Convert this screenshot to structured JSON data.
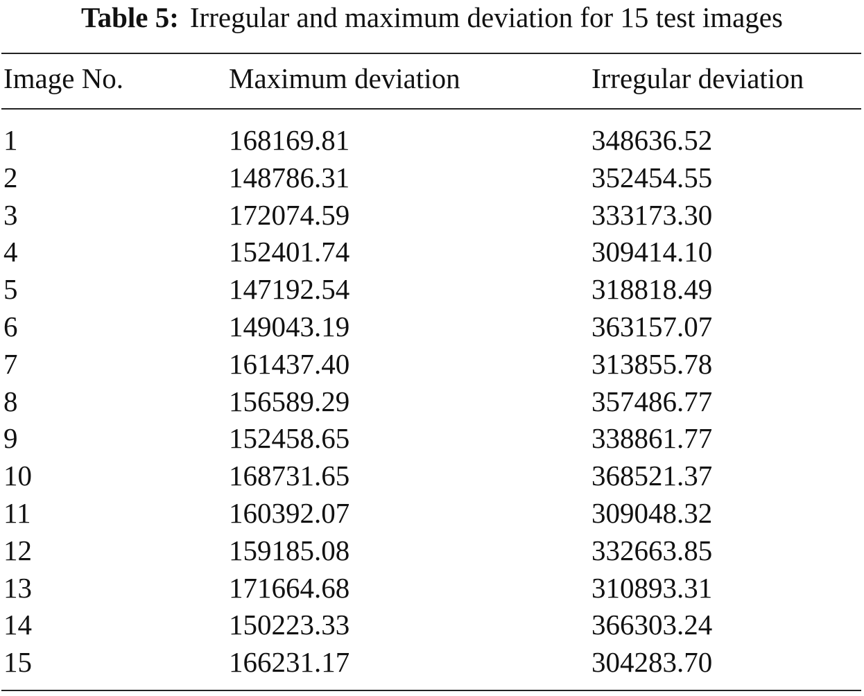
{
  "caption": {
    "label": "Table 5:",
    "text": "Irregular and maximum deviation for 15 test images"
  },
  "table": {
    "headers": [
      "Image No.",
      "Maximum deviation",
      "Irregular deviation"
    ],
    "rows": [
      [
        "1",
        "168169.81",
        "348636.52"
      ],
      [
        "2",
        "148786.31",
        "352454.55"
      ],
      [
        "3",
        "172074.59",
        "333173.30"
      ],
      [
        "4",
        "152401.74",
        "309414.10"
      ],
      [
        "5",
        "147192.54",
        "318818.49"
      ],
      [
        "6",
        "149043.19",
        "363157.07"
      ],
      [
        "7",
        "161437.40",
        "313855.78"
      ],
      [
        "8",
        "156589.29",
        "357486.77"
      ],
      [
        "9",
        "152458.65",
        "338861.77"
      ],
      [
        "10",
        "168731.65",
        "368521.37"
      ],
      [
        "11",
        "160392.07",
        "309048.32"
      ],
      [
        "12",
        "159185.08",
        "332663.85"
      ],
      [
        "13",
        "171664.68",
        "310893.31"
      ],
      [
        "14",
        "150223.33",
        "366303.24"
      ],
      [
        "15",
        "166231.17",
        "304283.70"
      ]
    ]
  }
}
